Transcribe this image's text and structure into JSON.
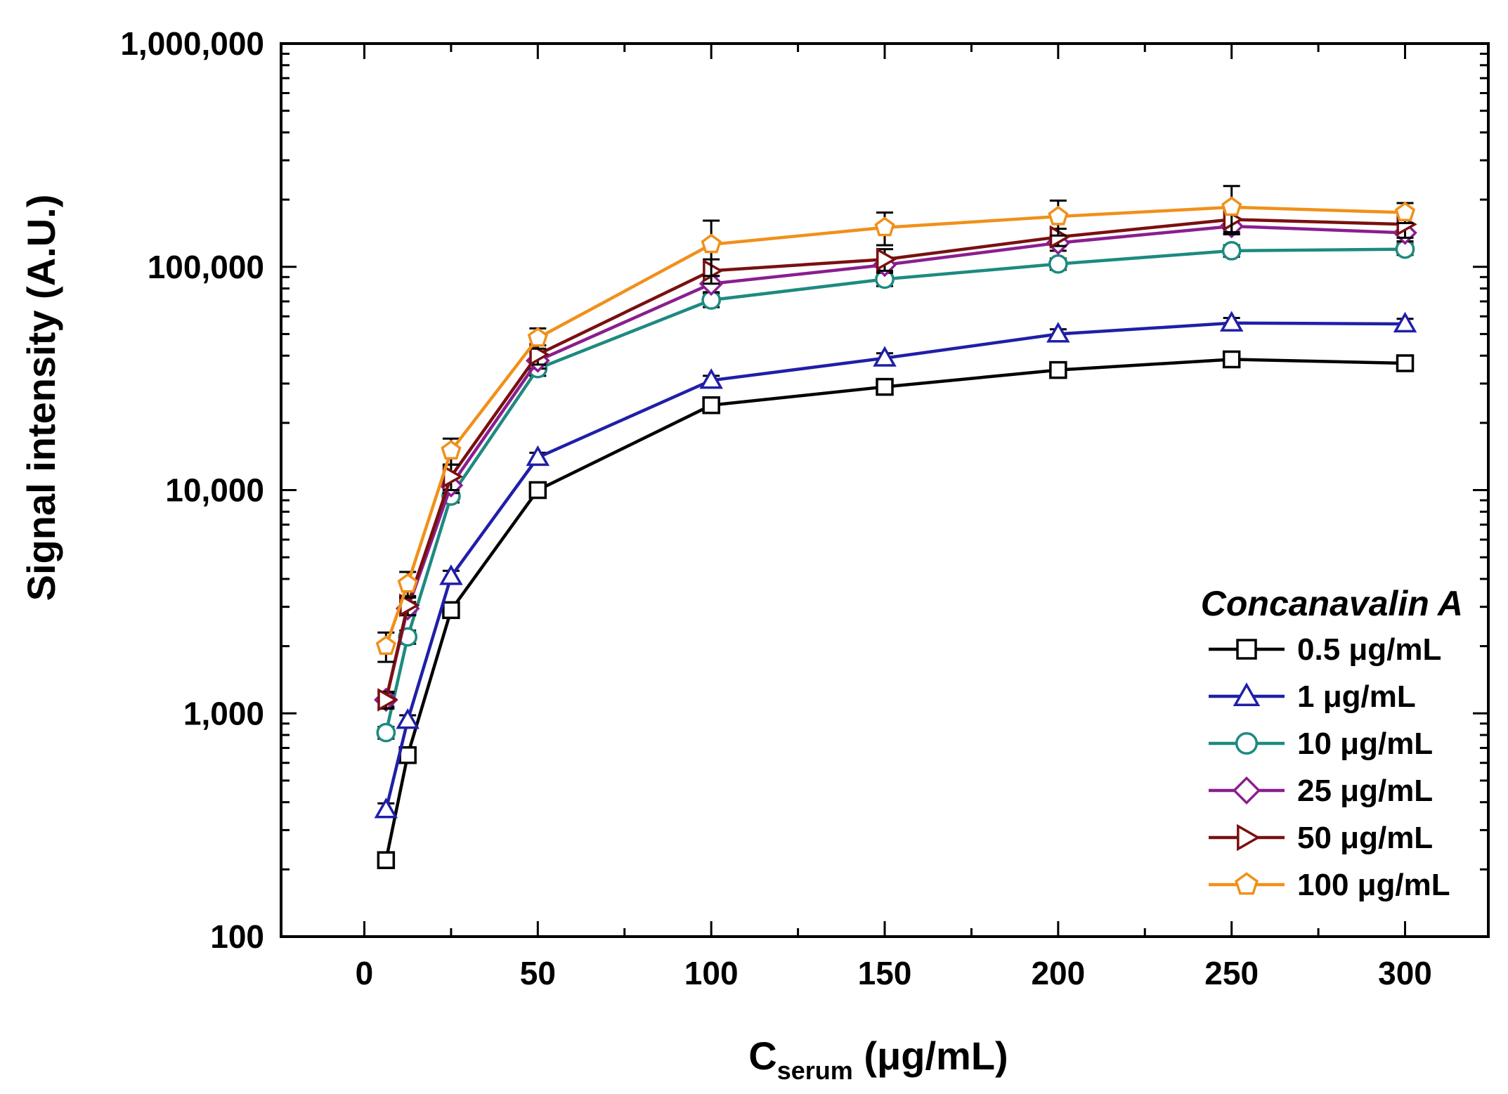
{
  "chart_data": {
    "type": "line",
    "title": "",
    "xlabel": {
      "main": "C",
      "sub": "serum",
      "unit": " (μg/mL)"
    },
    "ylabel": "Signal intensity (A.U.)",
    "xlim": [
      -24,
      324
    ],
    "ylim": [
      100,
      1000000
    ],
    "yscale": "log",
    "xticks": [
      0,
      50,
      100,
      150,
      200,
      250,
      300
    ],
    "xtick_labels": [
      "0",
      "50",
      "100",
      "150",
      "200",
      "250",
      "300"
    ],
    "yticks": [
      100,
      1000,
      10000,
      100000,
      1000000
    ],
    "ytick_labels": [
      "100",
      "1,000",
      "10,000",
      "100,000",
      "1,000,000"
    ],
    "legend_title": "Concanavalin A",
    "legend_position": "bottom-right",
    "x": [
      6.25,
      12.5,
      25,
      50,
      100,
      150,
      200,
      250,
      300
    ],
    "series": [
      {
        "name": "0.5 μg/mL",
        "color": "#000000",
        "marker": "square",
        "values": [
          220,
          650,
          2900,
          10000,
          24000,
          29000,
          34500,
          38500,
          37000
        ],
        "errors": [
          15,
          40,
          150,
          500,
          1500,
          1500,
          2000,
          2000,
          2000
        ]
      },
      {
        "name": "1 μg/mL",
        "color": "#1f1fa8",
        "marker": "triangle",
        "values": [
          370,
          930,
          4100,
          14000,
          31000,
          39000,
          50000,
          56000,
          55500
        ],
        "errors": [
          25,
          50,
          250,
          700,
          1500,
          2000,
          2500,
          3000,
          3000
        ]
      },
      {
        "name": "10 μg/mL",
        "color": "#1d8a80",
        "marker": "circle",
        "values": [
          820,
          2200,
          9400,
          35000,
          71000,
          88000,
          103000,
          118000,
          120000
        ],
        "errors": [
          50,
          150,
          600,
          2500,
          5000,
          6000,
          6000,
          7000,
          7000
        ]
      },
      {
        "name": "25 μg/mL",
        "color": "#8a1e8e",
        "marker": "diamond",
        "values": [
          1150,
          2950,
          10500,
          38000,
          84000,
          102000,
          128000,
          152000,
          142000
        ],
        "errors": [
          80,
          200,
          800,
          3000,
          7000,
          8000,
          10000,
          12000,
          12000
        ]
      },
      {
        "name": "50 μg/mL",
        "color": "#7a1010",
        "marker": "triangle-right",
        "values": [
          1150,
          3050,
          11500,
          40500,
          96000,
          108000,
          136000,
          163000,
          155000
        ],
        "errors": [
          100,
          300,
          1500,
          4000,
          12000,
          12000,
          12000,
          20000,
          20000
        ]
      },
      {
        "name": "100 μg/mL",
        "color": "#f0901a",
        "marker": "pentagon",
        "values": [
          2000,
          3800,
          15000,
          48000,
          126000,
          150000,
          168000,
          185000,
          175000
        ],
        "errors": [
          300,
          500,
          2000,
          5000,
          35000,
          25000,
          30000,
          45000,
          18000
        ]
      }
    ]
  }
}
